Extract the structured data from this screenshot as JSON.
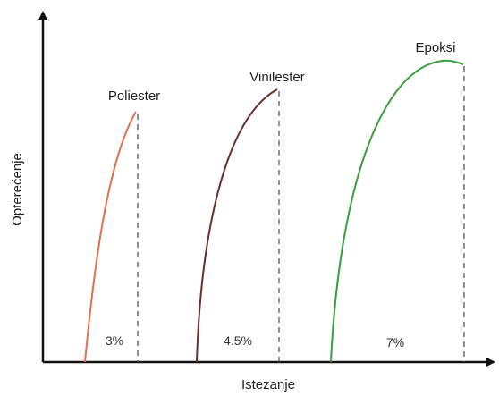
{
  "axes": {
    "y_label": "Opterećenje",
    "x_label": "Istezanje"
  },
  "curves": [
    {
      "label": "Poliester",
      "elongation": "3%"
    },
    {
      "label": "Vinilester",
      "elongation": "4.5%"
    },
    {
      "label": "Epoksi",
      "elongation": "7%"
    }
  ]
}
